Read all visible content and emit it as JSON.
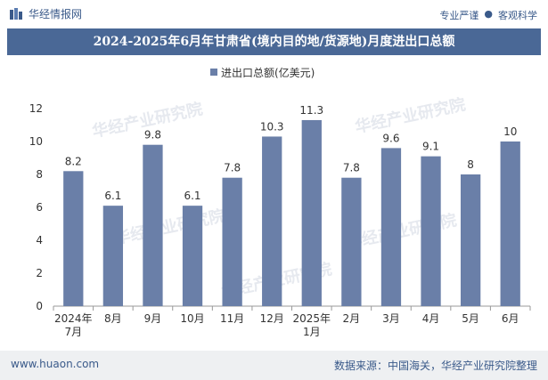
{
  "header": {
    "brand": "华经情报网",
    "slogan_left": "专业严谨",
    "slogan_right": "客观科学"
  },
  "title": "2024-2025年6月年甘肃省(境内目的地/货源地)月度进出口总额",
  "footer": {
    "site": "www.huaon.com",
    "source": "数据来源：中国海关，华经产业研究院整理"
  },
  "colors": {
    "bar": "#6a7fa8",
    "title_bg": "#4a6896",
    "accent": "#3a5a8a"
  },
  "chart_data": {
    "type": "bar",
    "legend": "进出口总额(亿美元)",
    "categories": [
      [
        "2024年",
        "7月"
      ],
      [
        "8月"
      ],
      [
        "9月"
      ],
      [
        "10月"
      ],
      [
        "11月"
      ],
      [
        "12月"
      ],
      [
        "2025年",
        "1月"
      ],
      [
        "2月"
      ],
      [
        "3月"
      ],
      [
        "4月"
      ],
      [
        "5月"
      ],
      [
        "6月"
      ]
    ],
    "values": [
      8.2,
      6.1,
      9.8,
      6.1,
      7.8,
      10.3,
      11.3,
      7.8,
      9.6,
      9.1,
      8,
      10
    ],
    "labels": [
      "8.2",
      "6.1",
      "9.8",
      "6.1",
      "7.8",
      "10.3",
      "11.3",
      "7.8",
      "9.6",
      "9.1",
      "8",
      "10"
    ],
    "ylim": [
      0,
      12
    ],
    "yticks": [
      0,
      2,
      4,
      6,
      8,
      10,
      12
    ],
    "grid": false,
    "watermark": "华经产业研究院"
  }
}
